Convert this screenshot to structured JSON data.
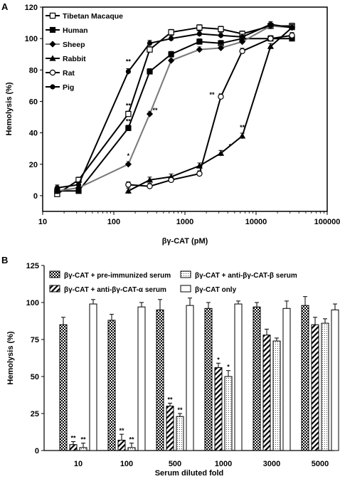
{
  "colors": {
    "black": "#000000",
    "gray": "#777777",
    "white": "#ffffff"
  },
  "chart_data": [
    {
      "panel_label": "A",
      "type": "line",
      "xscale": "log",
      "xlabel": "βγ-CAT (pM)",
      "ylabel": "Hemolysis (%)",
      "xlim": [
        10,
        100000
      ],
      "ylim": [
        -10,
        120
      ],
      "x_ticks": [
        "10",
        "100",
        "1000",
        "10000",
        "100000"
      ],
      "y_ticks": [
        "0",
        "20",
        "40",
        "60",
        "80",
        "100",
        "120"
      ],
      "legend_position": "top-left",
      "series": [
        {
          "name": "Tibetan Macaque",
          "marker": "open-square",
          "color": "#000000",
          "x": [
            16,
            32,
            160,
            320,
            640,
            1600,
            3200,
            6400,
            16000,
            32000
          ],
          "y": [
            1,
            10,
            52,
            93,
            104,
            107,
            106,
            103,
            108,
            108
          ]
        },
        {
          "name": "Human",
          "marker": "filled-square",
          "color": "#000000",
          "x": [
            16,
            32,
            160,
            320,
            640,
            1600,
            3200,
            6400,
            16000,
            32000
          ],
          "y": [
            3,
            3,
            43,
            79,
            90,
            98,
            97,
            100,
            100,
            100
          ]
        },
        {
          "name": "Sheep",
          "marker": "filled-diamond",
          "color": "#777777",
          "x": [
            16,
            32,
            160,
            320,
            640,
            1600,
            3200,
            6400,
            16000,
            32000
          ],
          "y": [
            3,
            5,
            20,
            52,
            86,
            93,
            94,
            98,
            108,
            107
          ]
        },
        {
          "name": "Rabbit",
          "marker": "filled-triangle",
          "color": "#000000",
          "x": [
            160,
            320,
            640,
            1600,
            3200,
            6400,
            16000,
            32000
          ],
          "y": [
            3,
            10,
            12,
            19,
            27,
            38,
            95,
            107
          ]
        },
        {
          "name": "Rat",
          "marker": "open-circle",
          "color": "#000000",
          "x": [
            160,
            320,
            640,
            1600,
            3200,
            6400,
            16000,
            32000
          ],
          "y": [
            7,
            6,
            10,
            14,
            63,
            92,
            100,
            102
          ]
        },
        {
          "name": "Pig",
          "marker": "filled-circle",
          "color": "#000000",
          "x": [
            16,
            32,
            160,
            320,
            640,
            1600,
            3200,
            6400,
            16000,
            32000
          ],
          "y": [
            5,
            7,
            79,
            97,
            100,
            103,
            102,
            101,
            109,
            107
          ]
        }
      ],
      "annotations": [
        {
          "text": "**",
          "x": 160,
          "y": 84
        },
        {
          "text": "**",
          "x": 160,
          "y": 56
        },
        {
          "text": "**",
          "x": 160,
          "y": 46
        },
        {
          "text": "*",
          "x": 160,
          "y": 24
        },
        {
          "text": "**",
          "x": 380,
          "y": 53
        },
        {
          "text": "**",
          "x": 2400,
          "y": 63
        },
        {
          "text": "*",
          "x": 4300,
          "y": 30
        },
        {
          "text": "**",
          "x": 6400,
          "y": 42
        }
      ]
    },
    {
      "panel_label": "B",
      "type": "bar",
      "xlabel": "Serum diluted fold",
      "ylabel": "Hemolysis (%)",
      "ylim": [
        0,
        125
      ],
      "y_ticks": [
        "0",
        "25",
        "50",
        "75",
        "100",
        "125"
      ],
      "categories": [
        "10",
        "100",
        "500",
        "1000",
        "3000",
        "5000"
      ],
      "legend_position": "top",
      "series": [
        {
          "name": "βγ-CAT + pre-immunized serum",
          "pattern": "checker",
          "values": [
            85,
            88,
            95,
            96,
            97,
            98
          ],
          "errors": [
            5,
            4,
            7,
            4,
            3,
            6
          ]
        },
        {
          "name": "βγ-CAT + anti-βγ-CAT-α serum",
          "pattern": "diagonal",
          "values": [
            4,
            7,
            30,
            56,
            78,
            85
          ],
          "errors": [
            2,
            4,
            2,
            3,
            4,
            5
          ]
        },
        {
          "name": "βγ-CAT + anti-βγ-CAT-β serum",
          "pattern": "dots",
          "values": [
            2,
            2,
            23,
            50,
            74,
            86
          ],
          "errors": [
            3,
            3,
            2,
            4,
            2,
            3
          ]
        },
        {
          "name": "βγ-CAT only",
          "pattern": "open",
          "values": [
            99,
            97,
            98,
            99,
            96,
            95
          ],
          "errors": [
            3,
            3,
            5,
            2,
            5,
            4
          ]
        }
      ],
      "annotations": [
        {
          "category": 0,
          "series": 1,
          "text": "**"
        },
        {
          "category": 0,
          "series": 2,
          "text": "**"
        },
        {
          "category": 1,
          "series": 1,
          "text": "**"
        },
        {
          "category": 1,
          "series": 2,
          "text": "**"
        },
        {
          "category": 2,
          "series": 1,
          "text": "**"
        },
        {
          "category": 2,
          "series": 2,
          "text": "**"
        },
        {
          "category": 3,
          "series": 1,
          "text": "*"
        },
        {
          "category": 3,
          "series": 2,
          "text": "*"
        }
      ]
    }
  ]
}
